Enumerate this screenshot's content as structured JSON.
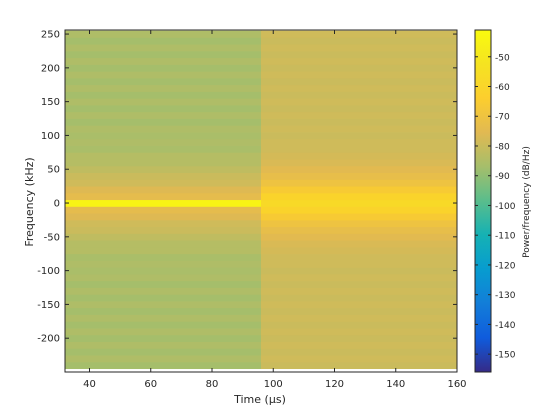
{
  "chart_data": {
    "type": "heatmap",
    "xlabel": "Time (µs)",
    "ylabel": "Frequency (kHz)",
    "colorbar_label": "Power/frequency (dB/Hz)",
    "xlim": [
      32,
      160
    ],
    "ylim": [
      -250,
      256
    ],
    "clim": [
      -156,
      -41
    ],
    "colormap": "parula",
    "x_ticks": [
      40,
      60,
      80,
      100,
      120,
      140,
      160
    ],
    "y_ticks": [
      -200,
      -150,
      -100,
      -50,
      0,
      50,
      100,
      150,
      200,
      250
    ],
    "colorbar_ticks": [
      -50,
      -60,
      -70,
      -80,
      -90,
      -100,
      -110,
      -120,
      -130,
      -140,
      -150
    ],
    "time_segments": [
      {
        "x_start": 32,
        "x_end": 96
      },
      {
        "x_start": 96,
        "x_end": 160
      }
    ],
    "frequency_bins_khz": [
      -240,
      -230,
      -220,
      -210,
      -200,
      -190,
      -180,
      -170,
      -160,
      -150,
      -140,
      -130,
      -120,
      -110,
      -100,
      -90,
      -80,
      -70,
      -60,
      -50,
      -40,
      -30,
      -20,
      -10,
      0,
      10,
      20,
      30,
      40,
      50,
      60,
      70,
      80,
      90,
      100,
      110,
      120,
      130,
      140,
      150,
      160,
      170,
      180,
      190,
      200,
      210,
      220,
      230,
      240,
      250
    ],
    "power_db_per_hz": [
      [
        -87,
        -85,
        -87,
        -85,
        -87,
        -85,
        -87,
        -85,
        -87,
        -85,
        -87,
        -85,
        -87,
        -85,
        -86,
        -85,
        -86,
        -84,
        -84,
        -82,
        -80,
        -79,
        -76,
        -74,
        -45,
        -74,
        -76,
        -79,
        -80,
        -82,
        -84,
        -84,
        -86,
        -85,
        -86,
        -85,
        -87,
        -85,
        -87,
        -85,
        -87,
        -85,
        -87,
        -85,
        -87,
        -85,
        -87,
        -85,
        -87,
        -85
      ],
      [
        -80,
        -79,
        -80,
        -79,
        -80,
        -79,
        -80,
        -79,
        -80,
        -79,
        -80,
        -79,
        -80,
        -79,
        -80,
        -79,
        -79,
        -78,
        -77,
        -75,
        -73,
        -70,
        -66,
        -61,
        -58,
        -61,
        -66,
        -70,
        -73,
        -75,
        -77,
        -78,
        -79,
        -79,
        -80,
        -79,
        -80,
        -79,
        -80,
        -79,
        -80,
        -79,
        -80,
        -79,
        -80,
        -79,
        -80,
        -79,
        -80,
        -79
      ]
    ]
  }
}
